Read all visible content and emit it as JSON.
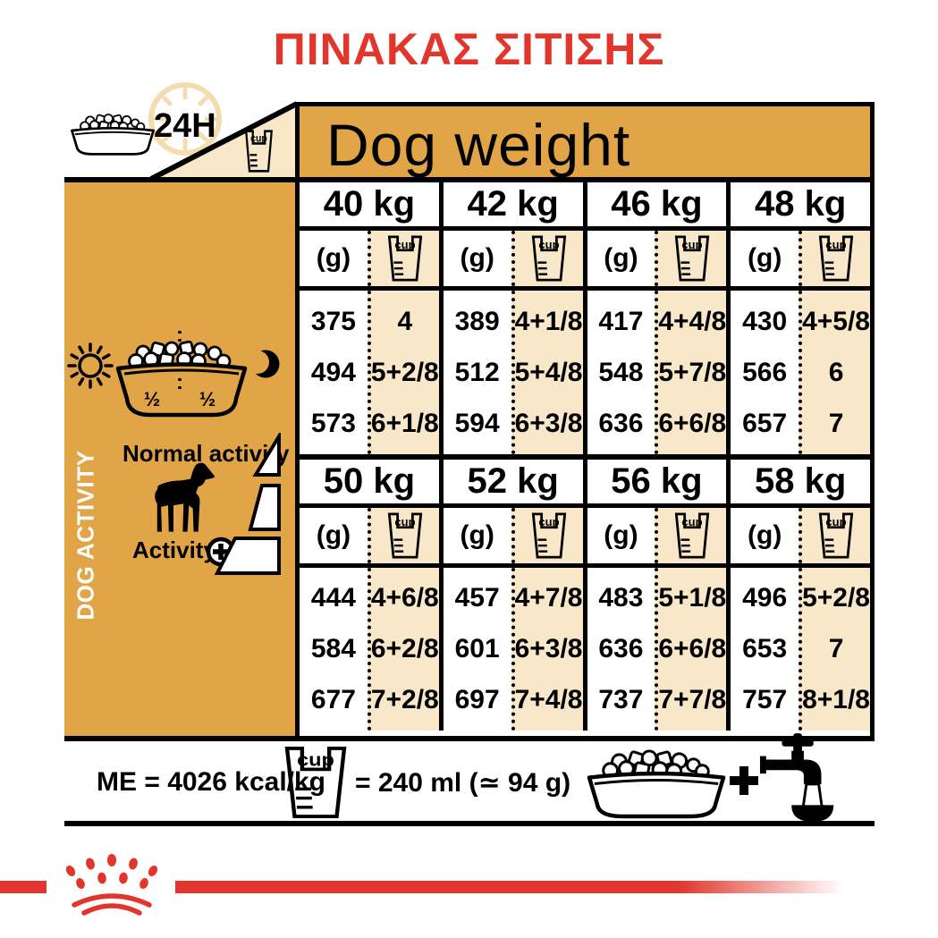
{
  "title": "ΠΙΝΑΚΑΣ ΣΙΤΙΣΗΣ",
  "header": {
    "dog_weight": "Dog weight",
    "hours_label": "24H",
    "cup_label": "cup"
  },
  "sidebar": {
    "vertical_label": "DOG ACTIVITY",
    "half_left": "½",
    "half_right": "½",
    "normal_activity": "Normal activity",
    "activity": "Activity",
    "plus": "+"
  },
  "table": {
    "unit_g": "(g)",
    "cup_label": "cup",
    "blocks": [
      {
        "columns": [
          {
            "weight": "40 kg",
            "rows": [
              {
                "g": "375",
                "cup": "4"
              },
              {
                "g": "494",
                "cup": "5+2/8"
              },
              {
                "g": "573",
                "cup": "6+1/8"
              }
            ]
          },
          {
            "weight": "42 kg",
            "rows": [
              {
                "g": "389",
                "cup": "4+1/8"
              },
              {
                "g": "512",
                "cup": "5+4/8"
              },
              {
                "g": "594",
                "cup": "6+3/8"
              }
            ]
          },
          {
            "weight": "46 kg",
            "rows": [
              {
                "g": "417",
                "cup": "4+4/8"
              },
              {
                "g": "548",
                "cup": "5+7/8"
              },
              {
                "g": "636",
                "cup": "6+6/8"
              }
            ]
          },
          {
            "weight": "48 kg",
            "rows": [
              {
                "g": "430",
                "cup": "4+5/8"
              },
              {
                "g": "566",
                "cup": "6"
              },
              {
                "g": "657",
                "cup": "7"
              }
            ]
          }
        ]
      },
      {
        "columns": [
          {
            "weight": "50 kg",
            "rows": [
              {
                "g": "444",
                "cup": "4+6/8"
              },
              {
                "g": "584",
                "cup": "6+2/8"
              },
              {
                "g": "677",
                "cup": "7+2/8"
              }
            ]
          },
          {
            "weight": "52 kg",
            "rows": [
              {
                "g": "457",
                "cup": "4+7/8"
              },
              {
                "g": "601",
                "cup": "6+3/8"
              },
              {
                "g": "697",
                "cup": "7+4/8"
              }
            ]
          },
          {
            "weight": "56 kg",
            "rows": [
              {
                "g": "483",
                "cup": "5+1/8"
              },
              {
                "g": "636",
                "cup": "6+6/8"
              },
              {
                "g": "737",
                "cup": "7+7/8"
              }
            ]
          },
          {
            "weight": "58 kg",
            "rows": [
              {
                "g": "496",
                "cup": "5+2/8"
              },
              {
                "g": "653",
                "cup": "7"
              },
              {
                "g": "757",
                "cup": "8+1/8"
              }
            ]
          }
        ]
      }
    ]
  },
  "footer": {
    "me_label": "ME = 4026 kcal/kg",
    "cup_label": "cup",
    "cup_equals": "= 240 ml (≃ 94 g)",
    "plus": "+"
  },
  "colors": {
    "gold": "#e1a446",
    "cream": "#f8e7c8",
    "red": "#e2352b",
    "clock_ring": "#f5dcad"
  }
}
